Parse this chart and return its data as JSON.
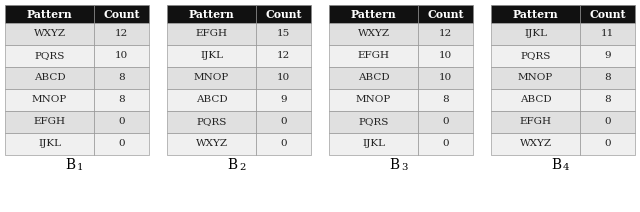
{
  "tables": [
    {
      "label": "B",
      "subscript": "1",
      "rows": [
        [
          "WXYZ",
          "12"
        ],
        [
          "PQRS",
          "10"
        ],
        [
          "ABCD",
          "8"
        ],
        [
          "MNOP",
          "8"
        ],
        [
          "EFGH",
          "0"
        ],
        [
          "IJKL",
          "0"
        ]
      ]
    },
    {
      "label": "B",
      "subscript": "2",
      "rows": [
        [
          "EFGH",
          "15"
        ],
        [
          "IJKL",
          "12"
        ],
        [
          "MNOP",
          "10"
        ],
        [
          "ABCD",
          "9"
        ],
        [
          "PQRS",
          "0"
        ],
        [
          "WXYZ",
          "0"
        ]
      ]
    },
    {
      "label": "B",
      "subscript": "3",
      "rows": [
        [
          "WXYZ",
          "12"
        ],
        [
          "EFGH",
          "10"
        ],
        [
          "ABCD",
          "10"
        ],
        [
          "MNOP",
          "8"
        ],
        [
          "PQRS",
          "0"
        ],
        [
          "IJKL",
          "0"
        ]
      ]
    },
    {
      "label": "B",
      "subscript": "4",
      "rows": [
        [
          "IJKL",
          "11"
        ],
        [
          "PQRS",
          "9"
        ],
        [
          "MNOP",
          "8"
        ],
        [
          "ABCD",
          "8"
        ],
        [
          "EFGH",
          "0"
        ],
        [
          "WXYZ",
          "0"
        ]
      ]
    }
  ],
  "header_bg": "#111111",
  "header_fg": "#ffffff",
  "row_bg_odd": "#e0e0e0",
  "row_bg_even": "#f0f0f0",
  "text_color": "#222222",
  "border_color": "#888888",
  "font_size": 7.5,
  "header_font_size": 7.8,
  "label_font_size": 10
}
